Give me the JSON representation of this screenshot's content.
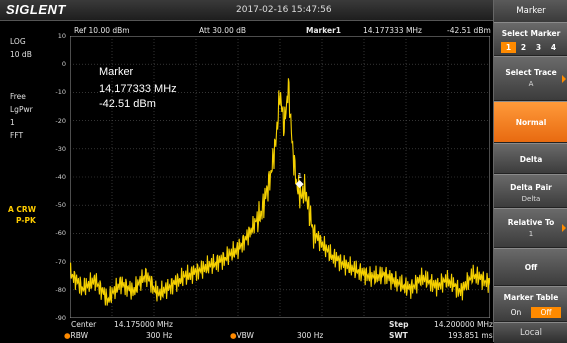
{
  "header": {
    "brand": "SIGLENT",
    "datetime": "2017-02-16  15:47:56"
  },
  "left_panel": {
    "scale_type": "LOG",
    "scale_div": "10 dB",
    "free": "Free",
    "trace_mode": "LgPwr",
    "avg_count": "1",
    "sweep_type": "FFT",
    "trace_label": "A CRW",
    "detector": "P-PK"
  },
  "measure_header": {
    "ref": "Ref  10.00 dBm",
    "att": "Att  30.00 dB",
    "marker_name": "Marker1",
    "marker_freq": "14.177333 MHz",
    "marker_level": "-42.51 dBm"
  },
  "marker_readout": {
    "title": "Marker",
    "freq": "14.177333 MHz",
    "level": "-42.51 dBm",
    "label": "1"
  },
  "bottom": {
    "center_label": "Center",
    "center_value": "14.175000 MHz",
    "rbw_label": "RBW",
    "rbw_value": "300 Hz",
    "vbw_label": "VBW",
    "vbw_value": "300 Hz",
    "step_label": "Step",
    "step_value": "14.200000 MHz",
    "swt_label": "SWT",
    "swt_value": "193.851 ms"
  },
  "chart_data": {
    "type": "line",
    "ylim": [
      -90,
      10
    ],
    "yticks": [
      "10",
      "0",
      "-10",
      "-20",
      "-30",
      "-40",
      "-50",
      "-60",
      "-70",
      "-80",
      "-90"
    ],
    "xlim": [
      14.15,
      14.2
    ],
    "marker": {
      "x": 14.177333,
      "y": -42.51
    },
    "color": "#f5d000",
    "series": [
      {
        "x": [
          14.15,
          14.1515,
          14.153,
          14.1545,
          14.156,
          14.1575,
          14.159,
          14.1605,
          14.162,
          14.1635,
          14.165,
          14.1665,
          14.168,
          14.169,
          14.17,
          14.171,
          14.172,
          14.1728,
          14.1735,
          14.174,
          14.1745,
          14.175,
          14.1755,
          14.176,
          14.1765,
          14.177,
          14.1775,
          14.178,
          14.1785,
          14.179,
          14.18,
          14.181,
          14.182,
          14.183,
          14.1845,
          14.186,
          14.1875,
          14.189,
          14.1905,
          14.192,
          14.1935,
          14.195,
          14.1965,
          14.198,
          14.2
        ],
        "y": [
          -72,
          -78,
          -75,
          -82,
          -76,
          -79,
          -73,
          -80,
          -77,
          -74,
          -72,
          -70,
          -68,
          -66,
          -64,
          -60,
          -55,
          -50,
          -42,
          -35,
          -25,
          -8,
          -20,
          -5,
          -28,
          -40,
          -45,
          -42,
          -50,
          -58,
          -62,
          -66,
          -68,
          -70,
          -72,
          -74,
          -73,
          -76,
          -78,
          -74,
          -77,
          -75,
          -79,
          -73,
          -76
        ]
      }
    ]
  },
  "panel": {
    "title": "Marker",
    "select_marker": "Select Marker",
    "marker_numbers": [
      "1",
      "2",
      "3",
      "4"
    ],
    "select_trace": "Select Trace",
    "select_trace_value": "A",
    "normal": "Normal",
    "delta": "Delta",
    "delta_pair": "Delta Pair",
    "delta_pair_value": "Delta",
    "relative_to": "Relative To",
    "relative_to_value": "1",
    "off": "Off",
    "marker_table": "Marker Table",
    "table_on": "On",
    "table_off": "Off",
    "local": "Local"
  }
}
